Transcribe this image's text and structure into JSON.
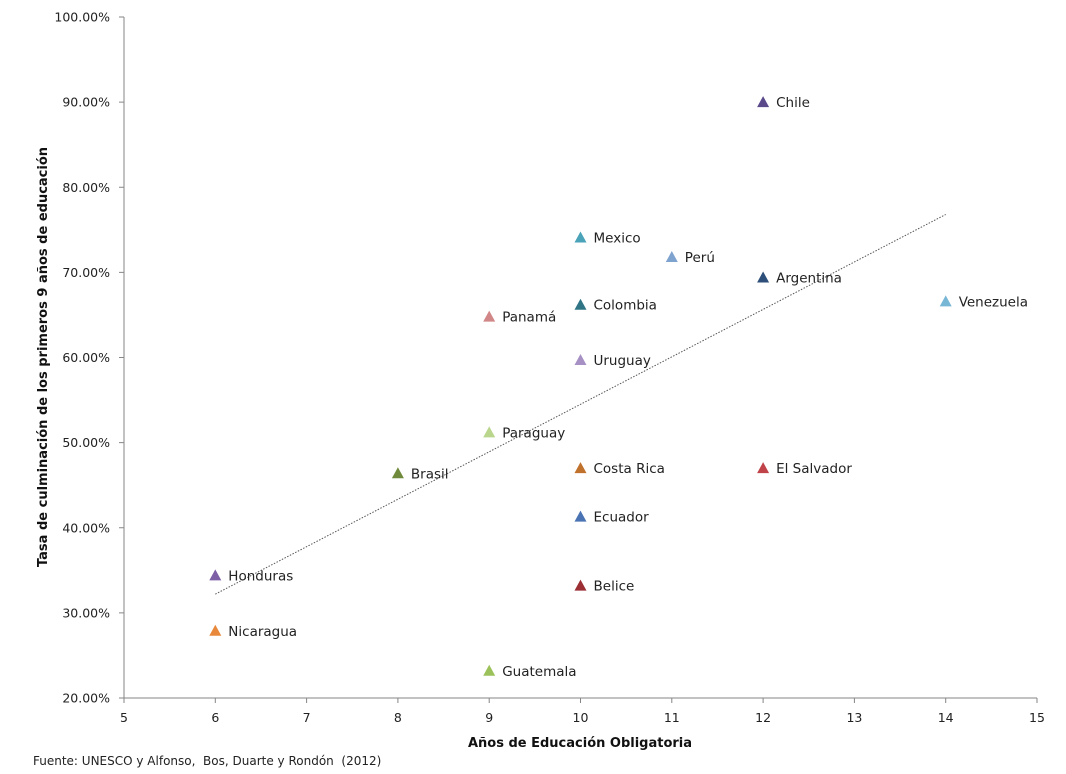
{
  "chart_data": {
    "type": "scatter",
    "title": "",
    "xlabel": "Años de Educación Obligatoria",
    "ylabel": "Tasa de culminación de los primeros 9 años de educación",
    "xlim": [
      5,
      15
    ],
    "ylim": [
      0.2,
      1.0
    ],
    "x_ticks": [
      5,
      6,
      7,
      8,
      9,
      10,
      11,
      12,
      13,
      14,
      15
    ],
    "x_tick_labels": [
      "5",
      "6",
      "7",
      "8",
      "9",
      "10",
      "11",
      "12",
      "13",
      "14",
      "15"
    ],
    "y_ticks": [
      0.2,
      0.3,
      0.4,
      0.5,
      0.6,
      0.7,
      0.8,
      0.9,
      1.0
    ],
    "y_tick_labels": [
      "20.00%",
      "30.00%",
      "40.00%",
      "50.00%",
      "60.00%",
      "70.00%",
      "80.00%",
      "90.00%",
      "100.00%"
    ],
    "grid": false,
    "marker": "triangle",
    "points": [
      {
        "label": "Chile",
        "x": 12,
        "y": 0.9,
        "color": "#5b4a8b"
      },
      {
        "label": "Mexico",
        "x": 10,
        "y": 0.741,
        "color": "#4aa3b8"
      },
      {
        "label": "Perú",
        "x": 11,
        "y": 0.718,
        "color": "#7fa3cf"
      },
      {
        "label": "Argentina",
        "x": 12,
        "y": 0.694,
        "color": "#2e4f7a"
      },
      {
        "label": "Venezuela",
        "x": 14,
        "y": 0.666,
        "color": "#78b6d6"
      },
      {
        "label": "Colombia",
        "x": 10,
        "y": 0.662,
        "color": "#2f7585"
      },
      {
        "label": "Panamá",
        "x": 9,
        "y": 0.648,
        "color": "#d18787"
      },
      {
        "label": "Uruguay",
        "x": 10,
        "y": 0.597,
        "color": "#a690c4"
      },
      {
        "label": "Paraguay",
        "x": 9,
        "y": 0.512,
        "color": "#b9d68c"
      },
      {
        "label": "Costa Rica",
        "x": 10,
        "y": 0.47,
        "color": "#c0712b"
      },
      {
        "label": "El Salvador",
        "x": 12,
        "y": 0.47,
        "color": "#c0434a"
      },
      {
        "label": "Brasil",
        "x": 8,
        "y": 0.464,
        "color": "#6f8a3b"
      },
      {
        "label": "Ecuador",
        "x": 10,
        "y": 0.413,
        "color": "#4a73b3"
      },
      {
        "label": "Honduras",
        "x": 6,
        "y": 0.344,
        "color": "#7d5fa6"
      },
      {
        "label": "Belice",
        "x": 10,
        "y": 0.332,
        "color": "#9b2f34"
      },
      {
        "label": "Nicaragua",
        "x": 6,
        "y": 0.279,
        "color": "#e8883a"
      },
      {
        "label": "Guatemala",
        "x": 9,
        "y": 0.232,
        "color": "#9bc25a"
      }
    ],
    "trendline": {
      "type": "linear",
      "x_start": 6,
      "y_start": 0.322,
      "x_end": 14,
      "y_end": 0.768,
      "color": "#555555",
      "style": "dotted"
    },
    "source_note": "Fuente: UNESCO y Alfonso,  Bos, Duarte y Rondón  (2012)"
  }
}
